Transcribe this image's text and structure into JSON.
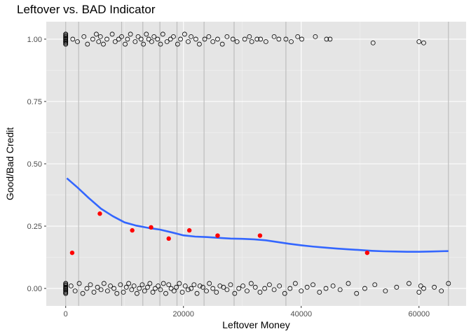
{
  "chart_data": {
    "type": "scatter",
    "title": "Leftover vs. BAD Indicator",
    "xlabel": "Leftover Money",
    "ylabel": "Good/Bad Credit",
    "xlim": [
      -3300,
      68000
    ],
    "ylim": [
      -0.07,
      1.07
    ],
    "x_ticks": [
      0,
      20000,
      40000,
      60000
    ],
    "x_tick_labels": [
      "0",
      "20000",
      "40000",
      "60000"
    ],
    "y_ticks": [
      0,
      0.25,
      0.5,
      0.75,
      1.0
    ],
    "y_tick_labels": [
      "0.00",
      "0.25",
      "0.50",
      "0.75",
      "1.00"
    ],
    "grid": true,
    "background": "#e5e5e5",
    "colors": {
      "mean_points": "#ff0000",
      "smooth_line": "#3366ff",
      "bin_lines": "#bdbdbd",
      "jitter_points": "#000000"
    },
    "bin_breaks": [
      0,
      2200,
      9500,
      13100,
      16000,
      18900,
      23500,
      28600,
      37400,
      65000
    ],
    "series": [
      {
        "type": "mean_points",
        "x": [
          1100,
          5800,
          11300,
          14500,
          17500,
          21000,
          25800,
          33000,
          51200
        ],
        "y": [
          0.143,
          0.3,
          0.233,
          0.245,
          0.2,
          0.233,
          0.212,
          0.212,
          0.143
        ]
      },
      {
        "type": "smooth_line",
        "x": [
          200,
          2000,
          4000,
          6000,
          8000,
          10000,
          12000,
          14000,
          16000,
          18000,
          20000,
          22000,
          24000,
          26000,
          28000,
          30000,
          32000,
          34000,
          36000,
          38000,
          40000,
          42000,
          44000,
          46000,
          48000,
          50000,
          52000,
          54000,
          56000,
          58000,
          60000,
          62000,
          65000
        ],
        "y": [
          0.442,
          0.405,
          0.361,
          0.32,
          0.29,
          0.265,
          0.252,
          0.243,
          0.236,
          0.225,
          0.213,
          0.208,
          0.206,
          0.203,
          0.2,
          0.199,
          0.197,
          0.193,
          0.186,
          0.179,
          0.173,
          0.168,
          0.164,
          0.16,
          0.157,
          0.154,
          0.151,
          0.149,
          0.148,
          0.147,
          0.147,
          0.148,
          0.15
        ]
      },
      {
        "type": "jitter_points",
        "y_level": 1,
        "x": [
          0,
          0,
          0,
          0,
          0,
          0,
          0,
          0,
          0,
          0,
          0,
          0,
          0,
          0,
          0,
          0,
          0,
          0,
          0,
          0,
          1200,
          2000,
          3100,
          3700,
          4600,
          5200,
          5600,
          5900,
          6400,
          7000,
          7900,
          8400,
          9000,
          9500,
          10100,
          10500,
          11000,
          11800,
          12300,
          12800,
          13200,
          13700,
          14100,
          14600,
          15000,
          15600,
          16100,
          16500,
          17200,
          17800,
          18300,
          19000,
          19500,
          20200,
          20800,
          21300,
          22100,
          22700,
          23600,
          24300,
          25000,
          25800,
          26600,
          27400,
          28400,
          29100,
          30400,
          31200,
          31600,
          32500,
          33100,
          34000,
          35400,
          36200,
          37400,
          38300,
          39400,
          40100,
          42400,
          44300,
          44900,
          52200,
          60000,
          60800
        ],
        "y": [
          0.98,
          0.99,
          1.0,
          1.01,
          1.02,
          0.985,
          0.995,
          1.005,
          1.015,
          0.99,
          0.98,
          0.99,
          1.0,
          1.01,
          1.02,
          0.985,
          0.995,
          1.005,
          1.015,
          0.99,
          1.0,
          0.99,
          1.01,
          0.98,
          1.0,
          1.02,
          0.99,
          1.01,
          0.98,
          1.0,
          1.02,
          0.99,
          1.0,
          1.01,
          0.98,
          1.0,
          1.02,
          0.99,
          1.01,
          1.0,
          0.98,
          1.02,
          1.0,
          0.99,
          1.01,
          1.0,
          0.98,
          1.02,
          0.99,
          1.0,
          1.01,
          0.98,
          1.0,
          1.02,
          0.99,
          1.01,
          1.0,
          0.98,
          1.0,
          1.01,
          0.99,
          1.0,
          0.98,
          1.01,
          1.0,
          0.99,
          1.0,
          1.01,
          0.99,
          1.0,
          1.0,
          0.99,
          1.01,
          1.0,
          1.0,
          0.99,
          1.01,
          1.0,
          1.01,
          1.0,
          1.0,
          0.985,
          0.99,
          0.985
        ]
      },
      {
        "type": "jitter_points",
        "y_level": 0,
        "x": [
          0,
          0,
          0,
          0,
          0,
          0,
          0,
          0,
          0,
          0,
          0,
          0,
          0,
          0,
          0,
          0,
          0,
          0,
          0,
          0,
          900,
          1600,
          2300,
          2900,
          3600,
          4200,
          4800,
          5400,
          6000,
          6500,
          7100,
          7600,
          8200,
          8700,
          9300,
          9800,
          10300,
          10700,
          11200,
          11600,
          12100,
          12500,
          13000,
          13400,
          13900,
          14300,
          14800,
          15200,
          15700,
          16100,
          16600,
          17000,
          17500,
          17900,
          18400,
          18800,
          19300,
          19800,
          20300,
          20800,
          21300,
          21800,
          22300,
          22800,
          23300,
          23900,
          24400,
          25000,
          25600,
          26200,
          26800,
          27400,
          28000,
          28700,
          29400,
          30100,
          30800,
          31500,
          32200,
          33000,
          33800,
          34600,
          35400,
          36300,
          37200,
          38100,
          39000,
          40000,
          41000,
          42000,
          43100,
          44200,
          45400,
          46600,
          48000,
          49400,
          50800,
          52500,
          54300,
          56200,
          58300,
          60000,
          60300,
          60800,
          62600,
          63800,
          65000
        ],
        "y": [
          -0.02,
          -0.01,
          0.0,
          0.01,
          0.02,
          -0.015,
          -0.005,
          0.005,
          0.015,
          0.0,
          -0.02,
          -0.01,
          0.0,
          0.01,
          0.02,
          -0.015,
          -0.005,
          0.005,
          0.015,
          0.0,
          0.01,
          -0.01,
          0.02,
          -0.02,
          0.0,
          0.015,
          -0.015,
          0.005,
          -0.005,
          0.02,
          -0.01,
          0.01,
          0.0,
          -0.02,
          0.015,
          -0.015,
          0.005,
          0.02,
          -0.005,
          0.01,
          -0.02,
          0.0,
          0.015,
          -0.01,
          0.005,
          0.02,
          -0.015,
          0.0,
          0.01,
          -0.005,
          0.02,
          -0.02,
          0.015,
          0.0,
          -0.01,
          0.005,
          0.02,
          -0.015,
          0.01,
          -0.005,
          0.0,
          0.015,
          -0.02,
          0.01,
          0.005,
          -0.01,
          0.02,
          0.0,
          -0.015,
          0.01,
          0.005,
          -0.005,
          0.015,
          -0.02,
          0.0,
          0.01,
          -0.01,
          0.02,
          0.005,
          -0.015,
          0.0,
          0.015,
          -0.005,
          0.01,
          -0.02,
          0.0,
          0.02,
          -0.01,
          0.005,
          0.015,
          -0.015,
          0.0,
          0.01,
          -0.005,
          0.02,
          -0.02,
          0.0,
          0.015,
          -0.01,
          0.005,
          0.02,
          -0.015,
          0.01,
          0.0,
          0.005,
          -0.01,
          0.02
        ]
      }
    ]
  }
}
